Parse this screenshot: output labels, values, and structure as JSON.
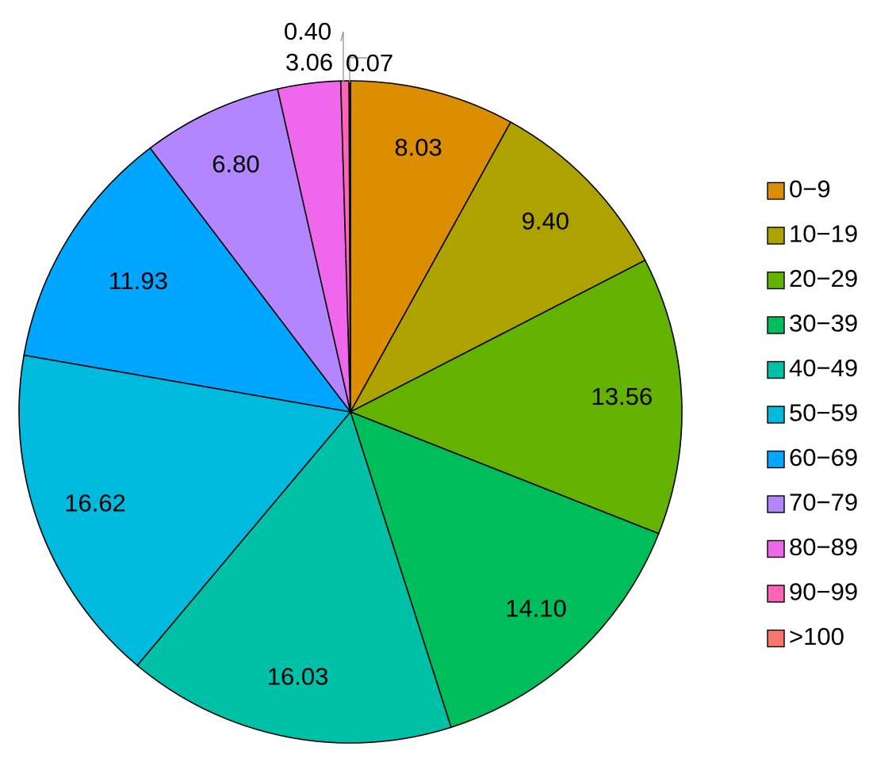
{
  "chart_data": {
    "type": "pie",
    "title": "",
    "categories": [
      "0−9",
      "10−19",
      "20−29",
      "30−39",
      "40−49",
      "50−59",
      "60−69",
      "70−79",
      "80−89",
      "90−99",
      ">100"
    ],
    "values": [
      8.03,
      9.4,
      13.56,
      14.1,
      16.03,
      16.62,
      11.93,
      6.8,
      3.06,
      0.4,
      0.07
    ],
    "value_labels": [
      "8.03",
      "9.40",
      "13.56",
      "14.10",
      "16.03",
      "16.62",
      "11.93",
      "6.80",
      "3.06",
      "0.40",
      "0.07"
    ],
    "colors": [
      "#DB8E00",
      "#AEA200",
      "#64B200",
      "#00BD5C",
      "#00C1A7",
      "#00BADE",
      "#00A6FF",
      "#B385FF",
      "#EF67EB",
      "#FF63B6",
      "#F8766D"
    ],
    "start": "12 o'clock",
    "direction": "clockwise",
    "legend_position": "right",
    "callout_labels": [
      "0.40",
      "0.07"
    ]
  }
}
